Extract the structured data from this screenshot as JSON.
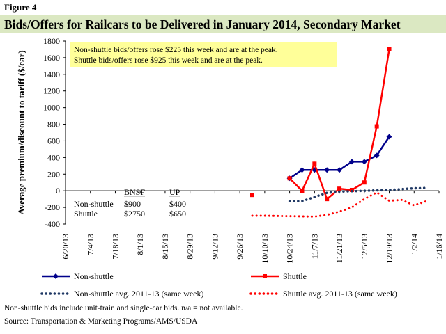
{
  "figure_label": "Figure 4",
  "chart_data": {
    "type": "line",
    "title": "Bids/Offers for Railcars to be Delivered in January 2014, Secondary Market",
    "ylabel": "Average premium/discount to tariff ($/car)",
    "ylim": [
      -400,
      1800
    ],
    "yticks": [
      -400,
      -200,
      0,
      200,
      400,
      600,
      800,
      1000,
      1200,
      1400,
      1600,
      1800
    ],
    "xticks": [
      "6/20/13",
      "7/4/13",
      "7/18/13",
      "8/1/13",
      "8/15/13",
      "8/29/13",
      "9/12/13",
      "9/26/13",
      "10/10/13",
      "10/24/13",
      "11/7/13",
      "11/21/13",
      "12/5/13",
      "12/19/13",
      "1/2/14",
      "1/16/14"
    ],
    "grid": false,
    "legend_position": "bottom",
    "annotation": [
      "Non-shuttle bids/offers rose $225 this week and are at the peak.",
      "Shuttle bids/offers rose $925 this week and are at the peak."
    ],
    "table": {
      "headers": [
        "",
        "BNSF",
        "UP"
      ],
      "rows": [
        [
          "Non-shuttle",
          "$900",
          "$400"
        ],
        [
          "Shuttle",
          "$2750",
          "$650"
        ]
      ]
    },
    "series": [
      {
        "name": "Non-shuttle",
        "color": "#00008b",
        "style": "solid-diamond",
        "points": [
          [
            "10/24/13",
            150
          ],
          [
            "10/31/13",
            250
          ],
          [
            "11/7/13",
            250
          ],
          [
            "11/14/13",
            250
          ],
          [
            "11/21/13",
            250
          ],
          [
            "11/28/13",
            350
          ],
          [
            "12/5/13",
            350
          ],
          [
            "12/12/13",
            425
          ],
          [
            "12/19/13",
            650
          ]
        ]
      },
      {
        "name": "Shuttle",
        "color": "#ff0000",
        "style": "solid-square",
        "points": [
          [
            "10/3/13",
            -50
          ],
          [
            "10/24/13",
            150
          ],
          [
            "10/31/13",
            0
          ],
          [
            "11/7/13",
            325
          ],
          [
            "11/14/13",
            -100
          ],
          [
            "11/21/13",
            25
          ],
          [
            "11/28/13",
            10
          ],
          [
            "12/5/13",
            100
          ],
          [
            "12/12/13",
            775
          ],
          [
            "12/19/13",
            1700
          ]
        ]
      },
      {
        "name": "Non-shuttle avg. 2011-13 (same week)",
        "color": "#1f3864",
        "style": "dotted",
        "points": [
          [
            "10/24/13",
            -125
          ],
          [
            "10/31/13",
            -125
          ],
          [
            "11/7/13",
            -75
          ],
          [
            "11/14/13",
            -25
          ],
          [
            "11/21/13",
            -10
          ],
          [
            "11/28/13",
            -5
          ],
          [
            "12/5/13",
            0
          ],
          [
            "12/12/13",
            5
          ],
          [
            "12/19/13",
            10
          ],
          [
            "12/26/13",
            20
          ],
          [
            "1/2/14",
            30
          ],
          [
            "1/9/14",
            35
          ]
        ]
      },
      {
        "name": "Shuttle avg. 2011-13 (same week)",
        "color": "#ff0000",
        "style": "dotted",
        "points": [
          [
            "10/3/13",
            -300
          ],
          [
            "10/10/13",
            -300
          ],
          [
            "11/7/13",
            -310
          ],
          [
            "11/14/13",
            -290
          ],
          [
            "11/21/13",
            -250
          ],
          [
            "11/28/13",
            -200
          ],
          [
            "12/5/13",
            -100
          ],
          [
            "12/12/13",
            -20
          ],
          [
            "12/19/13",
            -120
          ],
          [
            "12/26/13",
            -110
          ],
          [
            "1/2/14",
            -175
          ],
          [
            "1/9/14",
            -125
          ]
        ]
      }
    ]
  },
  "footnotes": [
    "Non-shuttle bids include unit-train and single-car bids.  n/a = not available.",
    "Source:  Transportation & Marketing Programs/AMS/USDA"
  ]
}
